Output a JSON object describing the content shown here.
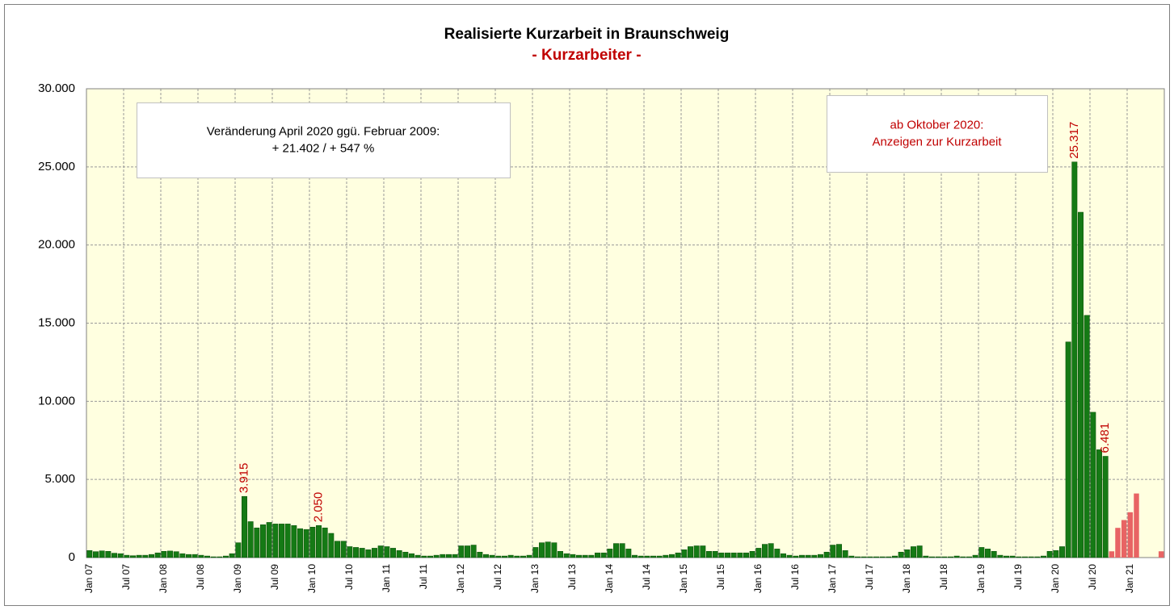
{
  "chart_data": {
    "type": "bar",
    "title": "Realisierte Kurzarbeit in Braunschweig",
    "subtitle": "- Kurzarbeiter -",
    "annotations": [
      [
        "Veränderung April 2020 ggü. Februar 2009:",
        "+ 21.402 / + 547 %"
      ],
      [
        "ab Oktober 2020:",
        "Anzeigen zur Kurzarbeit"
      ]
    ],
    "categories": [
      "Jan 07",
      null,
      null,
      null,
      null,
      null,
      "Jul 07",
      null,
      null,
      null,
      null,
      null,
      "Jan 08",
      null,
      null,
      null,
      null,
      null,
      "Jul 08",
      null,
      null,
      null,
      null,
      null,
      "Jan 09",
      null,
      null,
      null,
      null,
      null,
      "Jul 09",
      null,
      null,
      null,
      null,
      null,
      "Jan 10",
      null,
      null,
      null,
      null,
      null,
      "Jul 10",
      null,
      null,
      null,
      null,
      null,
      "Jan 11",
      null,
      null,
      null,
      null,
      null,
      "Jul 11",
      null,
      null,
      null,
      null,
      null,
      "Jan 12",
      null,
      null,
      null,
      null,
      null,
      "Jul 12",
      null,
      null,
      null,
      null,
      null,
      "Jan 13",
      null,
      null,
      null,
      null,
      null,
      "Jul 13",
      null,
      null,
      null,
      null,
      null,
      "Jan 14",
      null,
      null,
      null,
      null,
      null,
      "Jul 14",
      null,
      null,
      null,
      null,
      null,
      "Jan 15",
      null,
      null,
      null,
      null,
      null,
      "Jul 15",
      null,
      null,
      null,
      null,
      null,
      "Jan 16",
      null,
      null,
      null,
      null,
      null,
      "Jul 16",
      null,
      null,
      null,
      null,
      null,
      "Jan 17",
      null,
      null,
      null,
      null,
      null,
      "Jul 17",
      null,
      null,
      null,
      null,
      null,
      "Jan 18",
      null,
      null,
      null,
      null,
      null,
      "Jul 18",
      null,
      null,
      null,
      null,
      null,
      "Jan 19",
      null,
      null,
      null,
      null,
      null,
      "Jul 19",
      null,
      null,
      null,
      null,
      null,
      "Jan 20",
      null,
      null,
      null,
      null,
      null,
      "Jul 20",
      null,
      null,
      null,
      null,
      null,
      "Jan 21",
      null,
      null,
      null,
      null,
      null
    ],
    "series": [
      {
        "color": "#157a15",
        "label_color": "#c00000",
        "values": [
          450,
          380,
          430,
          400,
          280,
          250,
          150,
          120,
          150,
          150,
          200,
          300,
          400,
          420,
          380,
          250,
          200,
          200,
          150,
          100,
          50,
          50,
          100,
          250,
          950,
          3915,
          2300,
          1900,
          2100,
          2250,
          2150,
          2150,
          2150,
          2050,
          1850,
          1800,
          1950,
          2050,
          1900,
          1550,
          1050,
          1050,
          700,
          650,
          600,
          500,
          600,
          750,
          700,
          600,
          450,
          350,
          250,
          150,
          100,
          100,
          150,
          200,
          200,
          200,
          750,
          750,
          800,
          350,
          200,
          150,
          100,
          100,
          150,
          100,
          100,
          150,
          650,
          950,
          1000,
          950,
          400,
          250,
          200,
          150,
          150,
          150,
          300,
          300,
          550,
          900,
          900,
          550,
          150,
          100,
          100,
          100,
          100,
          150,
          200,
          300,
          500,
          700,
          750,
          750,
          400,
          400,
          300,
          300,
          300,
          300,
          300,
          400,
          600,
          850,
          900,
          550,
          250,
          150,
          100,
          150,
          150,
          150,
          200,
          350,
          800,
          850,
          450,
          100,
          50,
          50,
          50,
          50,
          50,
          50,
          100,
          350,
          500,
          700,
          750,
          100,
          50,
          50,
          50,
          50,
          100,
          50,
          50,
          150,
          650,
          550,
          400,
          150,
          100,
          100,
          50,
          50,
          50,
          50,
          100,
          400,
          450,
          700,
          13800,
          25317,
          22100,
          15500,
          9300,
          6900,
          6481,
          null,
          null,
          null,
          null,
          null,
          null,
          null,
          null,
          null
        ],
        "value_labels": [
          null,
          null,
          null,
          null,
          null,
          null,
          null,
          null,
          null,
          null,
          null,
          null,
          null,
          null,
          null,
          null,
          null,
          null,
          null,
          null,
          null,
          null,
          null,
          null,
          null,
          "3.915",
          null,
          null,
          null,
          null,
          null,
          null,
          null,
          null,
          null,
          null,
          null,
          "2.050",
          null,
          null,
          null,
          null,
          null,
          null,
          null,
          null,
          null,
          null,
          null,
          null,
          null,
          null,
          null,
          null,
          null,
          null,
          null,
          null,
          null,
          null,
          null,
          null,
          null,
          null,
          null,
          null,
          null,
          null,
          null,
          null,
          null,
          null,
          null,
          null,
          null,
          null,
          null,
          null,
          null,
          null,
          null,
          null,
          null,
          null,
          null,
          null,
          null,
          null,
          null,
          null,
          null,
          null,
          null,
          null,
          null,
          null,
          null,
          null,
          null,
          null,
          null,
          null,
          null,
          null,
          null,
          null,
          null,
          null,
          null,
          null,
          null,
          null,
          null,
          null,
          null,
          null,
          null,
          null,
          null,
          null,
          null,
          null,
          null,
          null,
          null,
          null,
          null,
          null,
          null,
          null,
          null,
          null,
          null,
          null,
          null,
          null,
          null,
          null,
          null,
          null,
          null,
          null,
          null,
          null,
          null,
          null,
          null,
          null,
          null,
          null,
          null,
          null,
          null,
          null,
          null,
          null,
          null,
          null,
          null,
          "25.317",
          null,
          null,
          null,
          null,
          "6.481",
          null,
          null,
          null,
          null,
          null,
          null,
          null,
          null,
          null
        ]
      },
      {
        "color": "#e86464",
        "values": [
          null,
          null,
          null,
          null,
          null,
          null,
          null,
          null,
          null,
          null,
          null,
          null,
          null,
          null,
          null,
          null,
          null,
          null,
          null,
          null,
          null,
          null,
          null,
          null,
          null,
          null,
          null,
          null,
          null,
          null,
          null,
          null,
          null,
          null,
          null,
          null,
          null,
          null,
          null,
          null,
          null,
          null,
          null,
          null,
          null,
          null,
          null,
          null,
          null,
          null,
          null,
          null,
          null,
          null,
          null,
          null,
          null,
          null,
          null,
          null,
          null,
          null,
          null,
          null,
          null,
          null,
          null,
          null,
          null,
          null,
          null,
          null,
          null,
          null,
          null,
          null,
          null,
          null,
          null,
          null,
          null,
          null,
          null,
          null,
          null,
          null,
          null,
          null,
          null,
          null,
          null,
          null,
          null,
          null,
          null,
          null,
          null,
          null,
          null,
          null,
          null,
          null,
          null,
          null,
          null,
          null,
          null,
          null,
          null,
          null,
          null,
          null,
          null,
          null,
          null,
          null,
          null,
          null,
          null,
          null,
          null,
          null,
          null,
          null,
          null,
          null,
          null,
          null,
          null,
          null,
          null,
          null,
          null,
          null,
          null,
          null,
          null,
          null,
          null,
          null,
          null,
          null,
          null,
          null,
          null,
          null,
          null,
          null,
          null,
          null,
          null,
          null,
          null,
          null,
          null,
          null,
          null,
          null,
          null,
          null,
          null,
          null,
          null,
          null,
          null,
          400,
          1900,
          2400,
          2900,
          4100,
          null,
          null,
          null,
          400
        ]
      }
    ],
    "ylim": [
      0,
      30000
    ],
    "yticks": [
      0,
      {
        "value": 5000,
        "label": "5.000"
      },
      {
        "value": 10000,
        "label": "10.000"
      },
      {
        "value": 15000,
        "label": "15.000"
      },
      {
        "value": 20000,
        "label": "20.000"
      },
      {
        "value": 25000,
        "label": "25.000"
      },
      {
        "value": 30000,
        "label": "30.000"
      }
    ],
    "grid": true,
    "plot_background": "#ffffe0"
  }
}
